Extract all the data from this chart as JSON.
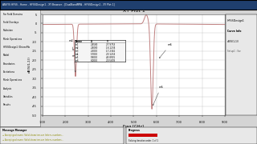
{
  "title": "XY Plot 1",
  "xlabel": "Freq [GHz]",
  "ylabel": "dB(S(1,1))",
  "xlim": [
    1.0,
    9.0
  ],
  "ylim": [
    -50,
    5
  ],
  "yticks": [
    5,
    0,
    -5,
    -10,
    -15,
    -20,
    -25,
    -30,
    -35,
    -40,
    -45,
    -50
  ],
  "xticks": [
    1.0,
    2.0,
    3.0,
    4.0,
    5.0,
    6.0,
    7.0,
    8.0,
    9.0
  ],
  "plot_bg": "#ffffff",
  "line_color": "#c08080",
  "grid_color": "#aaaaaa",
  "table_data": [
    [
      "m1",
      "2.4500",
      "-27.9753"
    ],
    [
      "m2",
      "2.4000",
      "-16.1234"
    ],
    [
      "m3",
      "2.5000",
      "-17.2341"
    ],
    [
      "m4",
      "5.7000",
      "-20.1234"
    ],
    [
      "m5",
      "5.8000",
      "-45.8901"
    ],
    [
      "m6",
      "6.0000",
      "-20.5678"
    ]
  ],
  "panel_bg": "#d4d4d4",
  "sidebar_bg": "#e8e8e8",
  "title_bar_color": "#1f3f6e"
}
